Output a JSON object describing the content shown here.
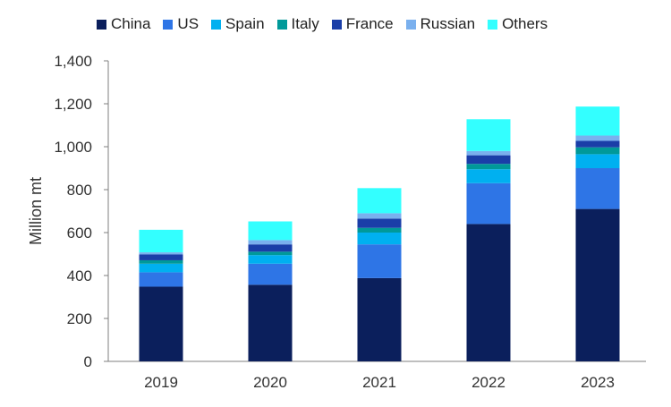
{
  "chart_data": {
    "type": "bar",
    "stacked": true,
    "categories": [
      "2019",
      "2020",
      "2021",
      "2022",
      "2023"
    ],
    "ylabel": "Million mt",
    "ylim": [
      0,
      1400
    ],
    "yticks": [
      "0",
      "200",
      "400",
      "600",
      "800",
      "1,000",
      "1,200",
      "1,400"
    ],
    "grid": false,
    "legend_position": "top",
    "series": [
      {
        "name": "China",
        "color": "#0b1f5c",
        "values": [
          348,
          357,
          388,
          640,
          710
        ]
      },
      {
        "name": "US",
        "color": "#2e75e6",
        "values": [
          67,
          98,
          157,
          190,
          190
        ]
      },
      {
        "name": "Spain",
        "color": "#00b0f0",
        "values": [
          40,
          40,
          55,
          65,
          65
        ]
      },
      {
        "name": "Italy",
        "color": "#009999",
        "values": [
          16,
          16,
          22,
          25,
          32
        ]
      },
      {
        "name": "France",
        "color": "#1a3ea8",
        "values": [
          27,
          34,
          43,
          40,
          30
        ]
      },
      {
        "name": "Russian",
        "color": "#7ab0ee",
        "values": [
          10,
          20,
          25,
          20,
          25
        ]
      },
      {
        "name": "Others",
        "color": "#33ffff",
        "values": [
          105,
          87,
          117,
          148,
          135
        ]
      }
    ]
  }
}
